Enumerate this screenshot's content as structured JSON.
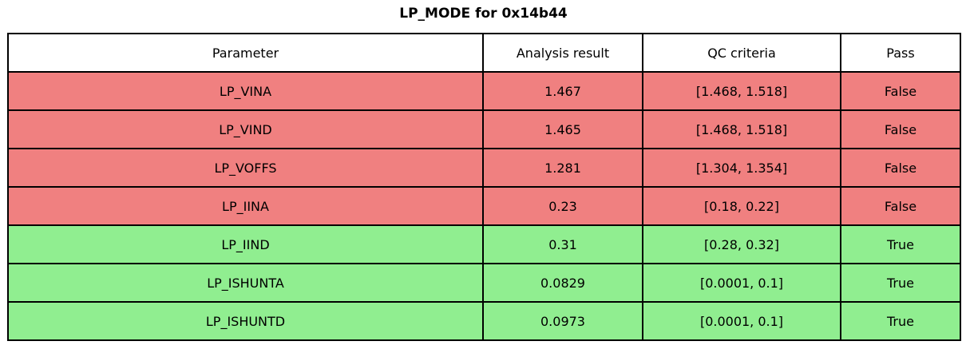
{
  "title": "LP_MODE for 0x14b44",
  "table": {
    "headers": [
      "Parameter",
      "Analysis result",
      "QC criteria",
      "Pass"
    ],
    "rows": [
      {
        "parameter": "LP_VINA",
        "result": "1.467",
        "criteria": "[1.468, 1.518]",
        "pass": "False"
      },
      {
        "parameter": "LP_VIND",
        "result": "1.465",
        "criteria": "[1.468, 1.518]",
        "pass": "False"
      },
      {
        "parameter": "LP_VOFFS",
        "result": "1.281",
        "criteria": "[1.304, 1.354]",
        "pass": "False"
      },
      {
        "parameter": "LP_IINA",
        "result": "0.23",
        "criteria": "[0.18, 0.22]",
        "pass": "False"
      },
      {
        "parameter": "LP_IIND",
        "result": "0.31",
        "criteria": "[0.28, 0.32]",
        "pass": "True"
      },
      {
        "parameter": "LP_ISHUNTA",
        "result": "0.0829",
        "criteria": "[0.0001, 0.1]",
        "pass": "True"
      },
      {
        "parameter": "LP_ISHUNTD",
        "result": "0.0973",
        "criteria": "[0.0001, 0.1]",
        "pass": "True"
      }
    ]
  },
  "colors": {
    "fail_row_bg": "#f08080",
    "pass_row_bg": "#90ee90",
    "header_bg": "#ffffff",
    "border": "#000000",
    "text": "#000000"
  },
  "chart_data": {
    "type": "table",
    "title": "LP_MODE for 0x14b44",
    "columns": [
      "Parameter",
      "Analysis result",
      "QC criteria",
      "Pass"
    ],
    "rows": [
      [
        "LP_VINA",
        1.467,
        "[1.468, 1.518]",
        false
      ],
      [
        "LP_VIND",
        1.465,
        "[1.468, 1.518]",
        false
      ],
      [
        "LP_VOFFS",
        1.281,
        "[1.304, 1.354]",
        false
      ],
      [
        "LP_IINA",
        0.23,
        "[0.18, 0.22]",
        false
      ],
      [
        "LP_IIND",
        0.31,
        "[0.28, 0.32]",
        true
      ],
      [
        "LP_ISHUNTA",
        0.0829,
        "[0.0001, 0.1]",
        true
      ],
      [
        "LP_ISHUNTD",
        0.0973,
        "[0.0001, 0.1]",
        true
      ]
    ],
    "row_color_rule": "pass=true -> green row, pass=false -> red row",
    "legend_position": "none",
    "grid": true
  }
}
